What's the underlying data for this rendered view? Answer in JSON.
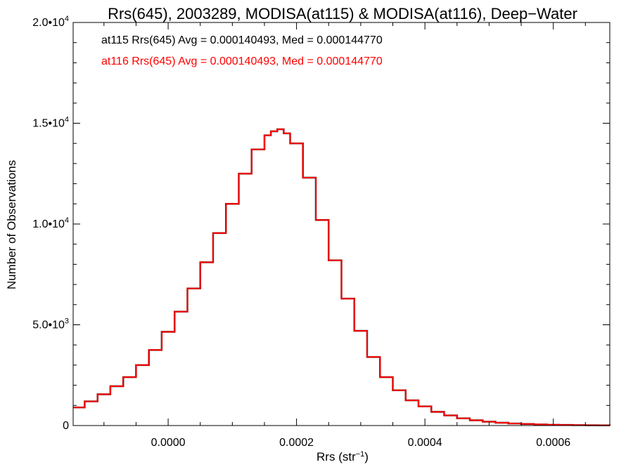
{
  "chart_data": {
    "type": "line",
    "title": "Rrs(645), 2003289, MODISA(at115) & MODISA(at116), Deep−Water",
    "xlabel": "Rrs (str",
    "xlabel_sup": "−1",
    "xlabel_suffix": ")",
    "ylabel": "Number of Observations",
    "xlim": [
      -0.000148,
      0.000688
    ],
    "ylim": [
      0,
      20000
    ],
    "x_ticks": [
      0.0,
      0.0002,
      0.0004,
      0.0006
    ],
    "x_tick_labels": [
      "0.0000",
      "0.0002",
      "0.0004",
      "0.0006"
    ],
    "y_ticks": [
      0,
      5000,
      10000,
      15000,
      20000
    ],
    "y_tick_labels": [
      {
        "base": "0",
        "exp": ""
      },
      {
        "base": "5.0•10",
        "exp": "3"
      },
      {
        "base": "1.0•10",
        "exp": "4"
      },
      {
        "base": "1.5•10",
        "exp": "4"
      },
      {
        "base": "2.0•10",
        "exp": "4"
      }
    ],
    "annotations": [
      {
        "text": "at115 Rrs(645) Avg = 0.000140493, Med = 0.000144770",
        "color": "#000000"
      },
      {
        "text": "at116 Rrs(645) Avg = 0.000140493, Med = 0.000144770",
        "color": "#ff0000"
      }
    ],
    "series": [
      {
        "name": "at115",
        "color": "#000000",
        "x": [
          -0.00015,
          -0.00013,
          -0.00011,
          -9e-05,
          -7e-05,
          -5e-05,
          -3e-05,
          -1e-05,
          1e-05,
          3e-05,
          5e-05,
          7e-05,
          9e-05,
          0.00011,
          0.00013,
          0.00015,
          0.00016,
          0.00017,
          0.00018,
          0.00019,
          0.00021,
          0.00023,
          0.00025,
          0.00027,
          0.00029,
          0.00031,
          0.00033,
          0.00035,
          0.00037,
          0.00039,
          0.00041,
          0.00043,
          0.00045,
          0.00047,
          0.00049,
          0.00051,
          0.00053,
          0.00055,
          0.00057,
          0.00059,
          0.00061,
          0.00063,
          0.00065,
          0.00067,
          0.00069
        ],
        "y": [
          900,
          1200,
          1550,
          1950,
          2400,
          3000,
          3750,
          4650,
          5650,
          6800,
          8100,
          9550,
          11000,
          12500,
          13700,
          14400,
          14600,
          14700,
          14500,
          14000,
          12300,
          10200,
          8200,
          6300,
          4700,
          3400,
          2400,
          1750,
          1250,
          950,
          680,
          500,
          360,
          260,
          190,
          140,
          100,
          75,
          55,
          40,
          30,
          20,
          15,
          10,
          5
        ]
      },
      {
        "name": "at116",
        "color": "#ff0000",
        "x": [
          -0.00015,
          -0.00013,
          -0.00011,
          -9e-05,
          -7e-05,
          -5e-05,
          -3e-05,
          -1e-05,
          1e-05,
          3e-05,
          5e-05,
          7e-05,
          9e-05,
          0.00011,
          0.00013,
          0.00015,
          0.00016,
          0.00017,
          0.00018,
          0.00019,
          0.00021,
          0.00023,
          0.00025,
          0.00027,
          0.00029,
          0.00031,
          0.00033,
          0.00035,
          0.00037,
          0.00039,
          0.00041,
          0.00043,
          0.00045,
          0.00047,
          0.00049,
          0.00051,
          0.00053,
          0.00055,
          0.00057,
          0.00059,
          0.00061,
          0.00063,
          0.00065,
          0.00067,
          0.00069
        ],
        "y": [
          900,
          1200,
          1550,
          1950,
          2400,
          3000,
          3750,
          4650,
          5650,
          6800,
          8100,
          9550,
          11000,
          12500,
          13700,
          14400,
          14600,
          14700,
          14500,
          14000,
          12300,
          10200,
          8200,
          6300,
          4700,
          3400,
          2400,
          1750,
          1250,
          950,
          680,
          500,
          360,
          260,
          190,
          140,
          100,
          75,
          55,
          40,
          30,
          20,
          15,
          10,
          5
        ]
      }
    ]
  }
}
